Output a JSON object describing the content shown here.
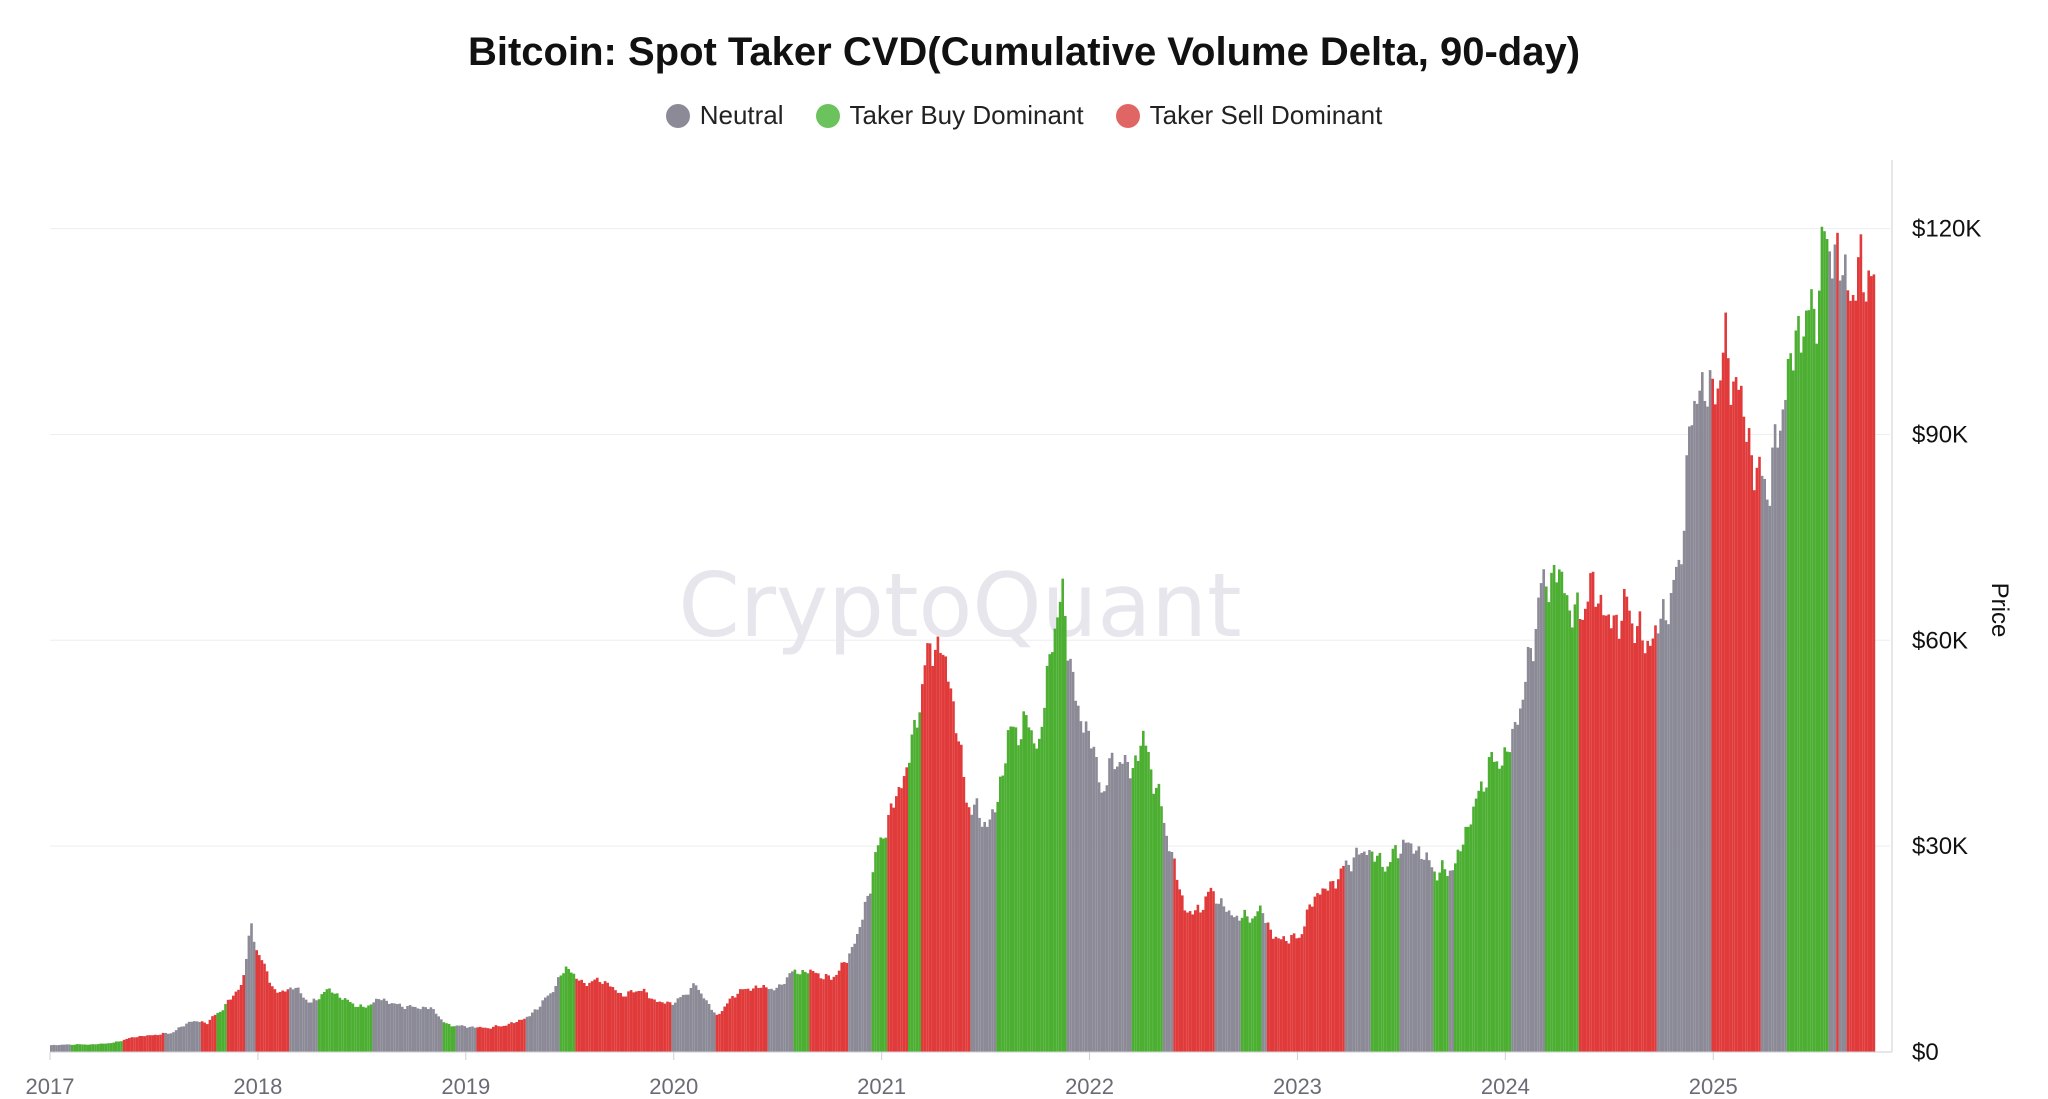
{
  "watermark": "CryptoQuant",
  "legend_items": [
    {
      "label": "Neutral",
      "color": "#8b8a96"
    },
    {
      "label": "Taker Buy Dominant",
      "color": "#6cc25c"
    },
    {
      "label": "Taker Sell Dominant",
      "color": "#e06666"
    }
  ],
  "chart_data": {
    "type": "bar",
    "title": "Bitcoin: Spot Taker CVD(Cumulative Volume Delta, 90-day)",
    "ylabel": "Price",
    "ylim": [
      0,
      130000
    ],
    "yticks": [
      0,
      30000,
      60000,
      90000,
      120000
    ],
    "ytick_labels": [
      "$0",
      "$30K",
      "$60K",
      "$90K",
      "$120K"
    ],
    "xlim": [
      2017.0,
      2025.85
    ],
    "xticks": [
      2017,
      2018,
      2019,
      2020,
      2021,
      2022,
      2023,
      2024,
      2025
    ],
    "xtick_labels": [
      "2017",
      "2018",
      "2019",
      "2020",
      "2021",
      "2022",
      "2023",
      "2024",
      "2025"
    ],
    "series_colors": {
      "neutral": "#8b8a96",
      "buy": "#4caf32",
      "sell": "#e03a3a"
    },
    "price": [
      [
        2017.0,
        1000
      ],
      [
        2017.1,
        1100
      ],
      [
        2017.2,
        1100
      ],
      [
        2017.3,
        1350
      ],
      [
        2017.4,
        2200
      ],
      [
        2017.5,
        2500
      ],
      [
        2017.58,
        2800
      ],
      [
        2017.67,
        4500
      ],
      [
        2017.75,
        4300
      ],
      [
        2017.83,
        6500
      ],
      [
        2017.92,
        10000
      ],
      [
        2017.96,
        18500
      ],
      [
        2018.0,
        14000
      ],
      [
        2018.04,
        11500
      ],
      [
        2018.08,
        8500
      ],
      [
        2018.17,
        9500
      ],
      [
        2018.25,
        7000
      ],
      [
        2018.33,
        9200
      ],
      [
        2018.42,
        7500
      ],
      [
        2018.5,
        6400
      ],
      [
        2018.58,
        7800
      ],
      [
        2018.67,
        6800
      ],
      [
        2018.75,
        6500
      ],
      [
        2018.83,
        6400
      ],
      [
        2018.9,
        4000
      ],
      [
        2019.0,
        3700
      ],
      [
        2019.1,
        3500
      ],
      [
        2019.2,
        4000
      ],
      [
        2019.3,
        5200
      ],
      [
        2019.4,
        8500
      ],
      [
        2019.48,
        12500
      ],
      [
        2019.55,
        10000
      ],
      [
        2019.65,
        10500
      ],
      [
        2019.75,
        8200
      ],
      [
        2019.83,
        9200
      ],
      [
        2019.92,
        7200
      ],
      [
        2020.0,
        7200
      ],
      [
        2020.1,
        9800
      ],
      [
        2020.2,
        5200
      ],
      [
        2020.3,
        8800
      ],
      [
        2020.4,
        9500
      ],
      [
        2020.5,
        9200
      ],
      [
        2020.55,
        11500
      ],
      [
        2020.65,
        11800
      ],
      [
        2020.75,
        10600
      ],
      [
        2020.83,
        13500
      ],
      [
        2020.9,
        19000
      ],
      [
        2020.97,
        29000
      ],
      [
        2021.05,
        36000
      ],
      [
        2021.1,
        40000
      ],
      [
        2021.15,
        46000
      ],
      [
        2021.2,
        56000
      ],
      [
        2021.25,
        60000
      ],
      [
        2021.3,
        57000
      ],
      [
        2021.35,
        49000
      ],
      [
        2021.4,
        37000
      ],
      [
        2021.45,
        35000
      ],
      [
        2021.5,
        33000
      ],
      [
        2021.55,
        36000
      ],
      [
        2021.6,
        46000
      ],
      [
        2021.7,
        48000
      ],
      [
        2021.75,
        44000
      ],
      [
        2021.82,
        62000
      ],
      [
        2021.87,
        66000
      ],
      [
        2021.93,
        50000
      ],
      [
        2022.0,
        46000
      ],
      [
        2022.05,
        38000
      ],
      [
        2022.12,
        43000
      ],
      [
        2022.2,
        41000
      ],
      [
        2022.25,
        46000
      ],
      [
        2022.32,
        38000
      ],
      [
        2022.38,
        30000
      ],
      [
        2022.45,
        21000
      ],
      [
        2022.5,
        20000
      ],
      [
        2022.58,
        23500
      ],
      [
        2022.67,
        20000
      ],
      [
        2022.75,
        19500
      ],
      [
        2022.83,
        20500
      ],
      [
        2022.88,
        16500
      ],
      [
        2023.0,
        16600
      ],
      [
        2023.08,
        23000
      ],
      [
        2023.15,
        24000
      ],
      [
        2023.25,
        28000
      ],
      [
        2023.33,
        29500
      ],
      [
        2023.42,
        27000
      ],
      [
        2023.5,
        30500
      ],
      [
        2023.58,
        29300
      ],
      [
        2023.67,
        26000
      ],
      [
        2023.75,
        27000
      ],
      [
        2023.83,
        34500
      ],
      [
        2023.92,
        42000
      ],
      [
        2024.0,
        43000
      ],
      [
        2024.08,
        52000
      ],
      [
        2024.17,
        68000
      ],
      [
        2024.25,
        70000
      ],
      [
        2024.33,
        63000
      ],
      [
        2024.42,
        68000
      ],
      [
        2024.5,
        62000
      ],
      [
        2024.58,
        65000
      ],
      [
        2024.67,
        59000
      ],
      [
        2024.75,
        63000
      ],
      [
        2024.83,
        70000
      ],
      [
        2024.88,
        90000
      ],
      [
        2024.93,
        98000
      ],
      [
        2024.98,
        95000
      ],
      [
        2025.05,
        102000
      ],
      [
        2025.12,
        96000
      ],
      [
        2025.2,
        84000
      ],
      [
        2025.27,
        83000
      ],
      [
        2025.33,
        95000
      ],
      [
        2025.4,
        105000
      ],
      [
        2025.48,
        108000
      ],
      [
        2025.53,
        118000
      ],
      [
        2025.58,
        117000
      ],
      [
        2025.62,
        113000
      ],
      [
        2025.67,
        111000
      ],
      [
        2025.73,
        115000
      ],
      [
        2025.77,
        110000
      ]
    ],
    "regimes": [
      {
        "start": 2017.0,
        "end": 2017.1,
        "type": "neutral"
      },
      {
        "start": 2017.1,
        "end": 2017.35,
        "type": "buy"
      },
      {
        "start": 2017.35,
        "end": 2017.55,
        "type": "sell"
      },
      {
        "start": 2017.55,
        "end": 2017.72,
        "type": "neutral"
      },
      {
        "start": 2017.72,
        "end": 2017.8,
        "type": "sell"
      },
      {
        "start": 2017.8,
        "end": 2017.84,
        "type": "buy"
      },
      {
        "start": 2017.84,
        "end": 2017.93,
        "type": "sell"
      },
      {
        "start": 2017.93,
        "end": 2017.98,
        "type": "neutral"
      },
      {
        "start": 2017.98,
        "end": 2018.15,
        "type": "sell"
      },
      {
        "start": 2018.15,
        "end": 2018.28,
        "type": "neutral"
      },
      {
        "start": 2018.28,
        "end": 2018.55,
        "type": "buy"
      },
      {
        "start": 2018.55,
        "end": 2018.88,
        "type": "neutral"
      },
      {
        "start": 2018.88,
        "end": 2018.95,
        "type": "buy"
      },
      {
        "start": 2018.95,
        "end": 2019.05,
        "type": "neutral"
      },
      {
        "start": 2019.05,
        "end": 2019.28,
        "type": "sell"
      },
      {
        "start": 2019.28,
        "end": 2019.45,
        "type": "neutral"
      },
      {
        "start": 2019.45,
        "end": 2019.52,
        "type": "buy"
      },
      {
        "start": 2019.52,
        "end": 2019.98,
        "type": "sell"
      },
      {
        "start": 2019.98,
        "end": 2020.2,
        "type": "neutral"
      },
      {
        "start": 2020.2,
        "end": 2020.45,
        "type": "sell"
      },
      {
        "start": 2020.45,
        "end": 2020.57,
        "type": "neutral"
      },
      {
        "start": 2020.57,
        "end": 2020.65,
        "type": "buy"
      },
      {
        "start": 2020.65,
        "end": 2020.83,
        "type": "sell"
      },
      {
        "start": 2020.83,
        "end": 2020.95,
        "type": "neutral"
      },
      {
        "start": 2020.95,
        "end": 2021.02,
        "type": "buy"
      },
      {
        "start": 2021.02,
        "end": 2021.12,
        "type": "sell"
      },
      {
        "start": 2021.12,
        "end": 2021.18,
        "type": "buy"
      },
      {
        "start": 2021.18,
        "end": 2021.42,
        "type": "sell"
      },
      {
        "start": 2021.42,
        "end": 2021.55,
        "type": "neutral"
      },
      {
        "start": 2021.55,
        "end": 2021.88,
        "type": "buy"
      },
      {
        "start": 2021.88,
        "end": 2022.2,
        "type": "neutral"
      },
      {
        "start": 2022.2,
        "end": 2022.35,
        "type": "buy"
      },
      {
        "start": 2022.35,
        "end": 2022.4,
        "type": "neutral"
      },
      {
        "start": 2022.4,
        "end": 2022.6,
        "type": "sell"
      },
      {
        "start": 2022.6,
        "end": 2022.72,
        "type": "neutral"
      },
      {
        "start": 2022.72,
        "end": 2022.82,
        "type": "buy"
      },
      {
        "start": 2022.82,
        "end": 2022.85,
        "type": "neutral"
      },
      {
        "start": 2022.85,
        "end": 2023.22,
        "type": "sell"
      },
      {
        "start": 2023.22,
        "end": 2023.35,
        "type": "neutral"
      },
      {
        "start": 2023.35,
        "end": 2023.48,
        "type": "buy"
      },
      {
        "start": 2023.48,
        "end": 2023.65,
        "type": "neutral"
      },
      {
        "start": 2023.65,
        "end": 2023.72,
        "type": "buy"
      },
      {
        "start": 2023.72,
        "end": 2023.75,
        "type": "neutral"
      },
      {
        "start": 2023.75,
        "end": 2024.02,
        "type": "buy"
      },
      {
        "start": 2024.02,
        "end": 2024.18,
        "type": "neutral"
      },
      {
        "start": 2024.18,
        "end": 2024.35,
        "type": "buy"
      },
      {
        "start": 2024.35,
        "end": 2024.72,
        "type": "sell"
      },
      {
        "start": 2024.72,
        "end": 2024.98,
        "type": "neutral"
      },
      {
        "start": 2024.98,
        "end": 2025.22,
        "type": "sell"
      },
      {
        "start": 2025.22,
        "end": 2025.35,
        "type": "neutral"
      },
      {
        "start": 2025.35,
        "end": 2025.55,
        "type": "buy"
      },
      {
        "start": 2025.55,
        "end": 2025.58,
        "type": "neutral"
      },
      {
        "start": 2025.58,
        "end": 2025.6,
        "type": "sell"
      },
      {
        "start": 2025.6,
        "end": 2025.63,
        "type": "neutral"
      },
      {
        "start": 2025.63,
        "end": 2025.77,
        "type": "sell"
      }
    ]
  }
}
